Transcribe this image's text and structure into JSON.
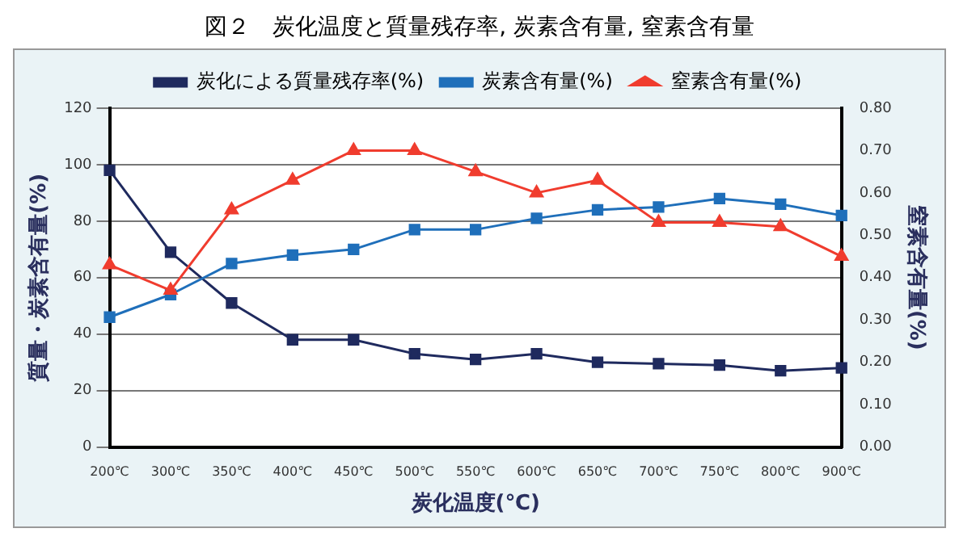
{
  "chart_data": {
    "type": "line",
    "title": "図２　炭化温度と質量残存率, 炭素含有量, 窒素含有量",
    "xlabel": "炭化温度(℃)",
    "ylabel": "質量・炭素含有量(%)",
    "y2label": "窒素含有量(%)",
    "categories": [
      "200℃",
      "300℃",
      "350℃",
      "400℃",
      "450℃",
      "500℃",
      "550℃",
      "600℃",
      "650℃",
      "700℃",
      "750℃",
      "800℃",
      "900℃"
    ],
    "series": [
      {
        "name": "炭化による質量残存率(%)",
        "color": "#1f2a5e",
        "marker": "square",
        "values": [
          98,
          69,
          51,
          38,
          38,
          33,
          31,
          33,
          30,
          29.5,
          29,
          27,
          28
        ]
      },
      {
        "name": "炭素含有量(%)",
        "color": "#1f6fba",
        "marker": "square",
        "values": [
          46,
          54,
          65,
          68,
          70,
          77,
          77,
          81,
          84,
          85,
          88,
          86,
          82
        ]
      },
      {
        "name": "窒素含有量(%)",
        "color": "#f03c2e",
        "marker": "triangle",
        "axis": "y2",
        "values": [
          0.43,
          0.37,
          0.56,
          0.63,
          0.7,
          0.7,
          0.65,
          0.6,
          0.63,
          0.53,
          0.53,
          0.52,
          0.45
        ]
      }
    ],
    "ylim": [
      0,
      120
    ],
    "yticks": [
      0,
      20,
      40,
      60,
      80,
      100,
      120
    ],
    "y2lim": [
      0,
      0.8
    ],
    "y2ticks": [
      {
        "value": 0,
        "label": "0.00"
      },
      {
        "value": 0.1,
        "label": "0.10"
      },
      {
        "value": 0.2,
        "label": "0.20"
      },
      {
        "value": 0.3,
        "label": "0.30"
      },
      {
        "value": 0.4,
        "label": "0.40"
      },
      {
        "value": 0.5,
        "label": "0.50"
      },
      {
        "value": 0.6,
        "label": "0.60"
      },
      {
        "value": 0.7,
        "label": "0.70"
      },
      {
        "value": 0.8,
        "label": "0.80"
      }
    ],
    "grid": "y",
    "legend": "top",
    "line_style": "solid"
  }
}
